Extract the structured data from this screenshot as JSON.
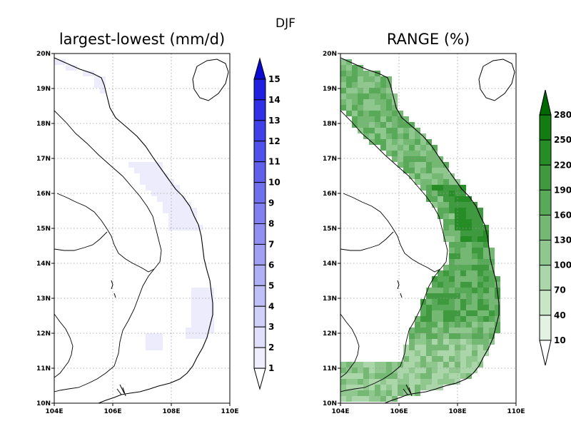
{
  "figure": {
    "season_title": "DJF",
    "panels": [
      {
        "id": "left",
        "title": "largest-lowest (mm/d)",
        "lat_ticks": [
          "20N",
          "19N",
          "18N",
          "17N",
          "16N",
          "15N",
          "14N",
          "13N",
          "12N",
          "11N",
          "10N"
        ],
        "lon_ticks": [
          "104E",
          "106E",
          "108E",
          "110E"
        ],
        "colorbar": {
          "labels": [
            "1",
            "2",
            "3",
            "4",
            "5",
            "6",
            "7",
            "8",
            "9",
            "10",
            "11",
            "12",
            "13",
            "14",
            "15"
          ],
          "values": [
            1,
            2,
            3,
            4,
            5,
            6,
            7,
            8,
            9,
            10,
            11,
            12,
            13,
            14,
            15
          ],
          "colors": [
            "#ffffff",
            "#eeeefe",
            "#e0e0fc",
            "#d0d0fa",
            "#c0c0f8",
            "#b0b0f6",
            "#a0a0f4",
            "#9090f2",
            "#8080f0",
            "#7070ee",
            "#6060ec",
            "#5050ea",
            "#4040e8",
            "#3030e6",
            "#2020e0",
            "#0a0ad0"
          ],
          "extend": "both"
        },
        "field_color": "#ececfc"
      },
      {
        "id": "right",
        "title": "RANGE (%)",
        "lat_ticks": [
          "20N",
          "19N",
          "18N",
          "17N",
          "16N",
          "15N",
          "14N",
          "13N",
          "12N",
          "11N",
          "10N"
        ],
        "lon_ticks": [
          "104E",
          "106E",
          "108E",
          "110E"
        ],
        "colorbar": {
          "labels": [
            "10",
            "40",
            "70",
            "100",
            "130",
            "160",
            "190",
            "220",
            "250",
            "280"
          ],
          "values": [
            10,
            40,
            70,
            100,
            130,
            160,
            190,
            220,
            250,
            280
          ],
          "colors": [
            "#ffffff",
            "#e4f2e4",
            "#c8e5c8",
            "#aad6aa",
            "#8fc78f",
            "#74b874",
            "#58aa58",
            "#3f9a3f",
            "#268c26",
            "#127c12",
            "#006800"
          ],
          "extend": "both"
        }
      }
    ]
  }
}
